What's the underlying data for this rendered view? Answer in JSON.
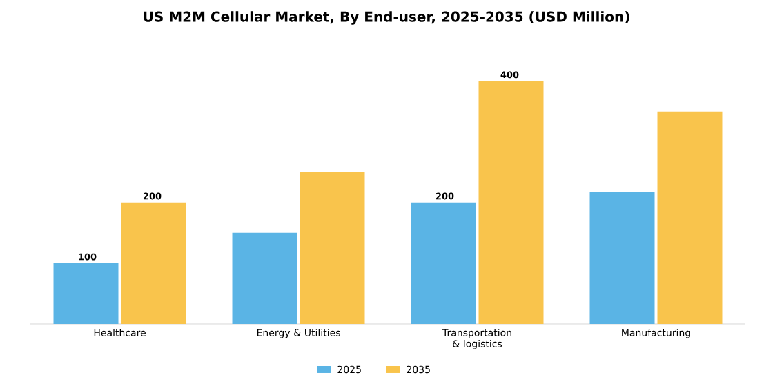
{
  "chart_data": {
    "type": "bar",
    "title": "US M2M Cellular Market, By End-user, 2025-2035 (USD Million)",
    "categories": [
      "Healthcare",
      "Energy & Utilities",
      "Transportation & logistics",
      "Manufacturing"
    ],
    "series": [
      {
        "name": "2025",
        "color": "#5ab4e5",
        "values": [
          100,
          150,
          200,
          217
        ],
        "value_labels": [
          "100",
          null,
          "200",
          null
        ]
      },
      {
        "name": "2035",
        "color": "#f9c44c",
        "values": [
          200,
          250,
          400,
          350
        ],
        "value_labels": [
          "200",
          null,
          "400",
          null
        ]
      }
    ],
    "legend": "bottom",
    "grid": false,
    "tick_labels": "x"
  }
}
